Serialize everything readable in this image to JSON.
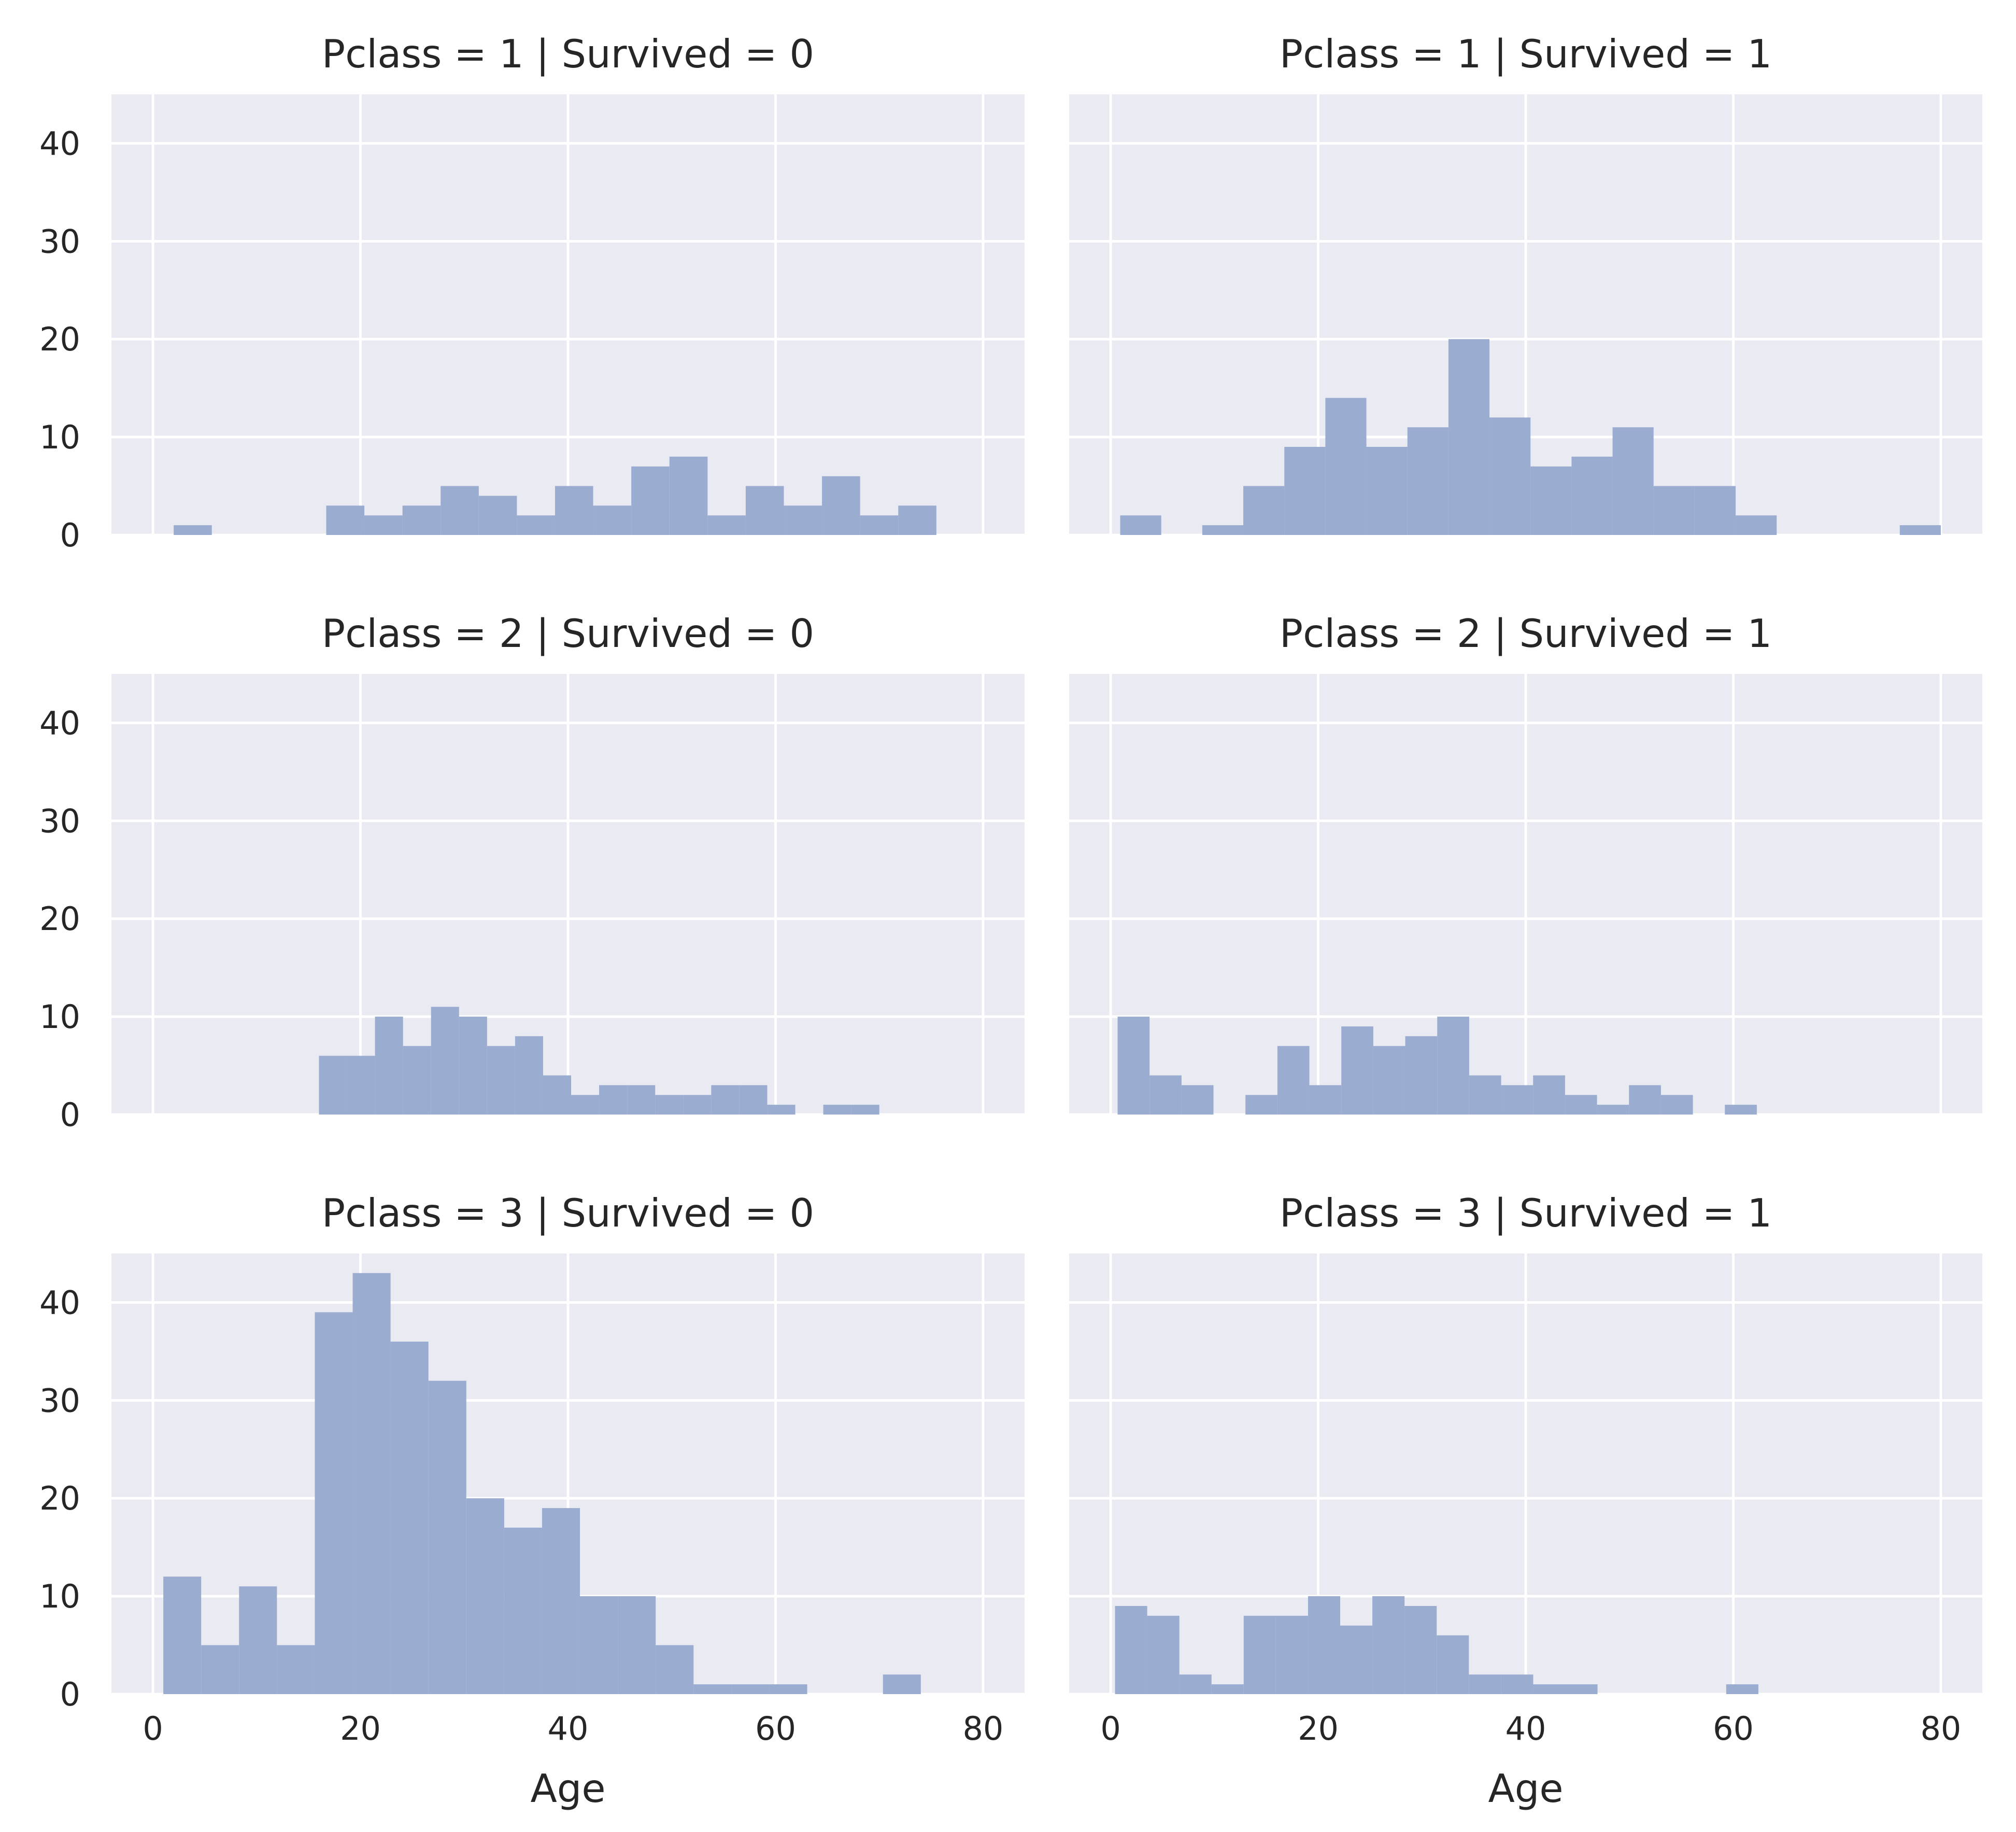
{
  "colors": {
    "panel_background": "#eaeaf2",
    "grid": "#ffffff",
    "bar": "#9aacd0",
    "text": "#262626"
  },
  "chart_data": {
    "type": "bar",
    "subtype": "faceted-histogram",
    "facet_grid": {
      "rows": 3,
      "cols": 2,
      "row_var": "Pclass",
      "col_var": "Survived"
    },
    "xlabel": "Age",
    "ylabel": "",
    "xlim": [
      -4,
      84
    ],
    "ylim": [
      0,
      45
    ],
    "x_ticks": [
      0,
      20,
      40,
      60,
      80
    ],
    "y_ticks": [
      0,
      10,
      20,
      30,
      40
    ],
    "grid": true,
    "bin_width": 3.675,
    "facets": [
      {
        "title": "Pclass = 1 | Survived = 0",
        "bin_start": 2.0,
        "counts": [
          1,
          0,
          0,
          0,
          3,
          2,
          3,
          5,
          4,
          2,
          5,
          3,
          7,
          8,
          2,
          5,
          3,
          6,
          2,
          3
        ]
      },
      {
        "title": "Pclass = 1 | Survived = 1",
        "bin_start": 0.92,
        "bin_width": 3.954,
        "counts": [
          2,
          0,
          1,
          5,
          9,
          14,
          9,
          11,
          20,
          12,
          7,
          8,
          11,
          5,
          5,
          2,
          0,
          0,
          0,
          1
        ]
      },
      {
        "title": "Pclass = 2 | Survived = 0",
        "bin_start": 16.0,
        "bin_width": 2.7,
        "counts": [
          6,
          6,
          10,
          7,
          11,
          10,
          7,
          8,
          4,
          2,
          3,
          3,
          2,
          2,
          3,
          3,
          1,
          0,
          1,
          1
        ]
      },
      {
        "title": "Pclass = 2 | Survived = 1",
        "bin_start": 0.67,
        "bin_width": 3.08,
        "counts": [
          10,
          4,
          3,
          0,
          2,
          7,
          3,
          9,
          7,
          8,
          10,
          4,
          3,
          4,
          2,
          1,
          3,
          2,
          0,
          1
        ]
      },
      {
        "title": "Pclass = 3 | Survived = 0",
        "bin_start": 1.0,
        "bin_width": 3.65,
        "counts": [
          12,
          5,
          11,
          5,
          39,
          43,
          36,
          32,
          20,
          17,
          19,
          10,
          10,
          5,
          1,
          1,
          1,
          0,
          0,
          2
        ]
      },
      {
        "title": "Pclass = 3 | Survived = 1",
        "bin_start": 0.42,
        "bin_width": 3.1,
        "counts": [
          9,
          8,
          2,
          1,
          8,
          8,
          10,
          7,
          10,
          9,
          6,
          2,
          2,
          1,
          1,
          0,
          0,
          0,
          0,
          1
        ]
      }
    ]
  }
}
